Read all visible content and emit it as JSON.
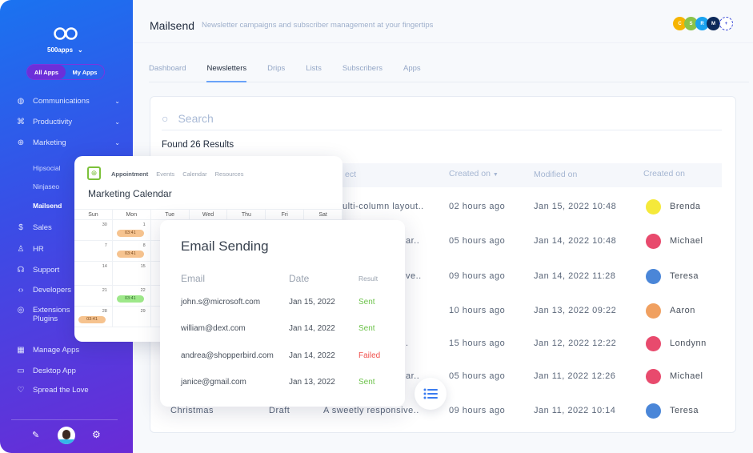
{
  "sidebar": {
    "org": "500apps",
    "switch": {
      "all": "All Apps",
      "mine": "My Apps"
    },
    "items": [
      {
        "label": "Communications",
        "icon": "globe-icon"
      },
      {
        "label": "Productivity",
        "icon": "command-icon"
      },
      {
        "label": "Marketing",
        "icon": "crosshair-icon"
      }
    ],
    "marketing_sub": [
      "Hipsocial",
      "Ninjaseo",
      "Mailsend"
    ],
    "items2": [
      {
        "label": "Sales",
        "icon": "dollar-icon"
      },
      {
        "label": "HR",
        "icon": "user-icon"
      },
      {
        "label": "Support",
        "icon": "headphones-icon"
      },
      {
        "label": "Developers",
        "icon": "code-icon"
      },
      {
        "label": "Extensions",
        "label2": "Plugins",
        "icon": "chrome-icon"
      }
    ],
    "bottom": [
      {
        "label": "Manage Apps",
        "icon": "grid-icon"
      },
      {
        "label": "Desktop App",
        "icon": "monitor-icon"
      },
      {
        "label": "Spread the Love",
        "icon": "heart-icon"
      }
    ]
  },
  "header": {
    "title": "Mailsend",
    "subtitle": "Newsletter campaigns and subscriber management at your fingertips",
    "avatars": [
      {
        "l": "C",
        "c": "#f6b400"
      },
      {
        "l": "S",
        "c": "#8bc34a"
      },
      {
        "l": "R",
        "c": "#1aa3f0"
      },
      {
        "l": "M",
        "c": "#0d2a5a"
      }
    ]
  },
  "tabs": [
    "Dashboard",
    "Newsletters",
    "Drips",
    "Lists",
    "Subscribers",
    "Apps"
  ],
  "search": {
    "placeholder": "Search"
  },
  "found": "Found 26 Results",
  "table": {
    "headers": {
      "subject": "ect",
      "created": "Created on",
      "modified": "Modified on",
      "created_by": "Created on"
    },
    "rows": [
      {
        "name": "",
        "status": "",
        "subject": "ulti-column layout..",
        "created": "02 hours ago",
        "modified": "Jan 15, 2022 10:48",
        "by": "Brenda",
        "color": "#f5e93a"
      },
      {
        "name": "",
        "status": "",
        "subject": "ar..",
        "created": "05 hours ago",
        "modified": "Jan 14, 2022 10:48",
        "by": "Michael",
        "color": "#e84a6d"
      },
      {
        "name": "",
        "status": "",
        "subject": "ve..",
        "created": "09 hours ago",
        "modified": "Jan 14, 2022 11:28",
        "by": "Teresa",
        "color": "#4a86d8"
      },
      {
        "name": "",
        "status": "",
        "subject": "",
        "created": "10 hours ago",
        "modified": "Jan 13, 2022 09:22",
        "by": "Aaron",
        "color": "#f0a060"
      },
      {
        "name": "",
        "status": "",
        "subject": ".",
        "created": "15 hours ago",
        "modified": "Jan 12, 2022 12:22",
        "by": "Londynn",
        "color": "#e84a6d"
      },
      {
        "name": "",
        "status": "",
        "subject": "ar..",
        "created": "05 hours ago",
        "modified": "Jan 11, 2022 12:26",
        "by": "Michael",
        "color": "#e84a6d"
      },
      {
        "name": "Christmas",
        "status": "Draft",
        "subject": "A sweetly responsive..",
        "created": "09 hours ago",
        "modified": "Jan 11, 2022 10:14",
        "by": "Teresa",
        "color": "#4a86d8"
      }
    ]
  },
  "calendar": {
    "tabs": [
      "Appointment",
      "Events",
      "Calendar",
      "Resources"
    ],
    "title": "Marketing Calendar",
    "days": [
      "Sun",
      "Mon",
      "Tue",
      "Wed",
      "Thu",
      "Fri",
      "Sat"
    ],
    "weeks": [
      [
        "30",
        "1"
      ],
      [
        "7",
        "8"
      ],
      [
        "14",
        "15"
      ],
      [
        "21",
        "22"
      ],
      [
        "28",
        "29"
      ]
    ],
    "event_time": "03:41"
  },
  "email_card": {
    "title": "Email Sending",
    "headers": [
      "Email",
      "Date",
      "Result"
    ],
    "rows": [
      {
        "email": "john.s@microsoft.com",
        "date": "Jan 15, 2022",
        "result": "Sent"
      },
      {
        "email": "william@dext.com",
        "date": "Jan 14, 2022",
        "result": "Sent"
      },
      {
        "email": "andrea@shopperbird.com",
        "date": "Jan 14, 2022",
        "result": "Failed"
      },
      {
        "email": "janice@gmail.com",
        "date": "Jan 13, 2022",
        "result": "Sent"
      }
    ],
    "colors": {
      "Sent": "#6cc24a",
      "Failed": "#f0534f"
    }
  }
}
